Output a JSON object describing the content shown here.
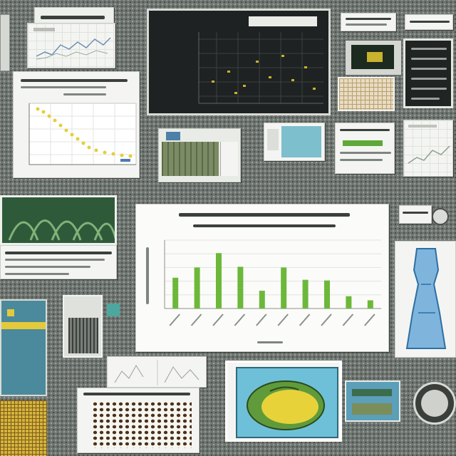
{
  "colors": {
    "bar": "#6cb83a",
    "curve_dot": "#e3cf3a",
    "screen_dot": "#c9b22d",
    "background": "#6f7570"
  },
  "chart_data": {
    "type": "bar",
    "categories": [
      "",
      "",
      "",
      "",
      "",
      "",
      "",
      "",
      "",
      ""
    ],
    "values": [
      45,
      60,
      81,
      61,
      26,
      60,
      42,
      41,
      18,
      12
    ],
    "ylim": [
      0,
      100
    ],
    "grid": true
  }
}
